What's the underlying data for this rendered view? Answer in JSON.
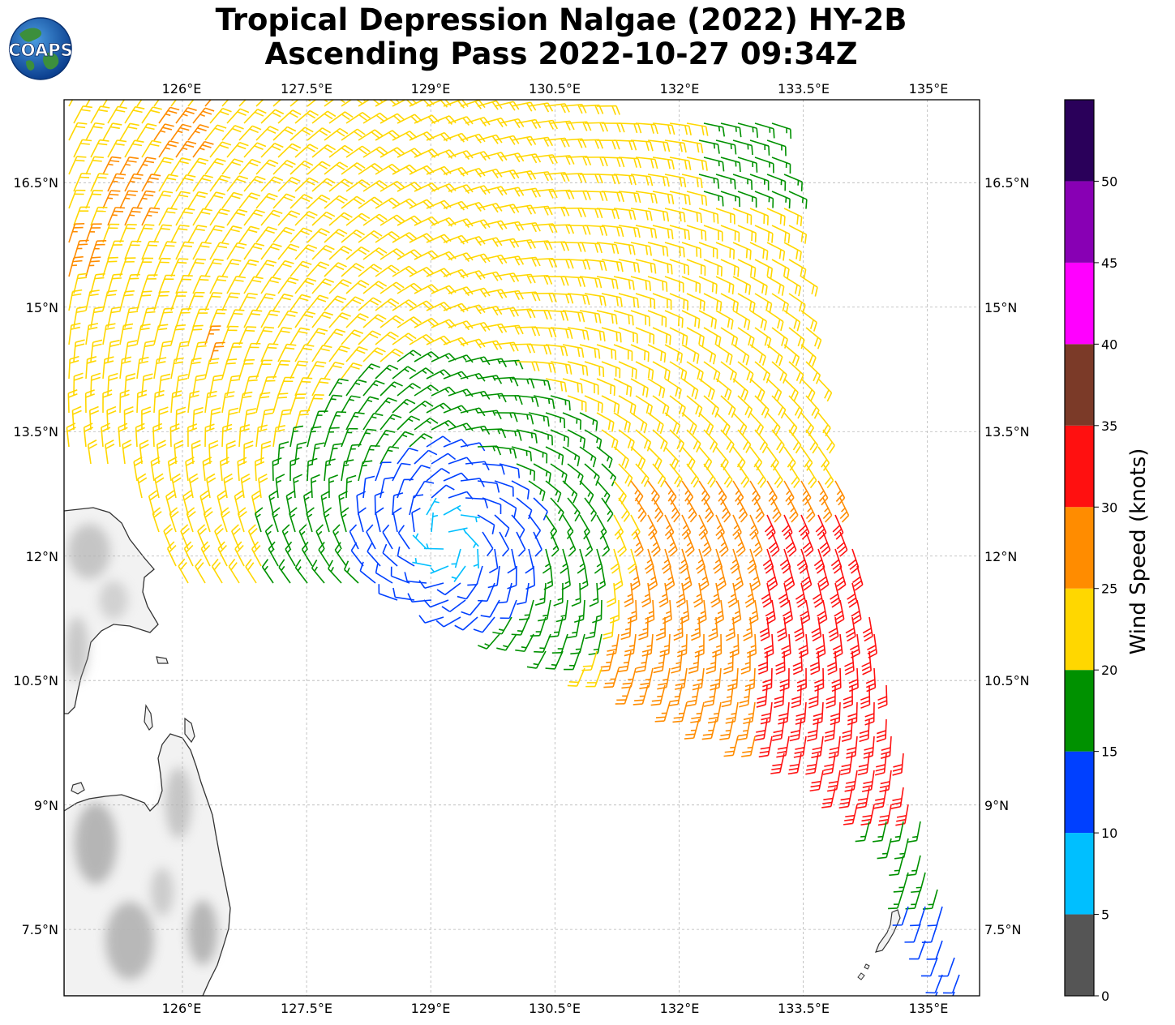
{
  "title": {
    "line1": "Tropical Depression Nalgae (2022) HY-2B",
    "line2": "Ascending Pass 2022-10-27 09:34Z"
  },
  "logo": {
    "text": "COAPS",
    "icon": "globe-logo-icon"
  },
  "map": {
    "lon_ticks": [
      "126°E",
      "127.5°E",
      "129°E",
      "130.5°E",
      "132°E",
      "133.5°E",
      "135°E"
    ],
    "lat_ticks": [
      "16.5°N",
      "15°N",
      "13.5°N",
      "12°N",
      "10.5°N",
      "9°N",
      "7.5°N"
    ],
    "lon_values": [
      126,
      127.5,
      129,
      130.5,
      132,
      133.5,
      135
    ],
    "lat_values": [
      16.5,
      15,
      13.5,
      12,
      10.5,
      9,
      7.5
    ],
    "lon_range": [
      124.57,
      135.63
    ],
    "lat_range": [
      6.7,
      17.5
    ],
    "grid": true,
    "storm_center_approx": {
      "lon": 129.2,
      "lat": 12.2
    }
  },
  "colorbar": {
    "label": "Wind Speed (knots)",
    "ticks": [
      "0",
      "5",
      "10",
      "15",
      "20",
      "25",
      "30",
      "35",
      "40",
      "45",
      "50"
    ],
    "bins": [
      {
        "min": 0,
        "max": 5,
        "color": "#555555"
      },
      {
        "min": 5,
        "max": 10,
        "color": "#00bfff"
      },
      {
        "min": 10,
        "max": 15,
        "color": "#0040ff"
      },
      {
        "min": 15,
        "max": 20,
        "color": "#009100"
      },
      {
        "min": 20,
        "max": 25,
        "color": "#ffd700"
      },
      {
        "min": 25,
        "max": 30,
        "color": "#ff8c00"
      },
      {
        "min": 30,
        "max": 35,
        "color": "#ff1010"
      },
      {
        "min": 35,
        "max": 40,
        "color": "#7b3a28"
      },
      {
        "min": 40,
        "max": 45,
        "color": "#ff00ff"
      },
      {
        "min": 45,
        "max": 50,
        "color": "#8800b4"
      },
      {
        "min": 50,
        "max": 55,
        "color": "#2a005a"
      }
    ]
  }
}
